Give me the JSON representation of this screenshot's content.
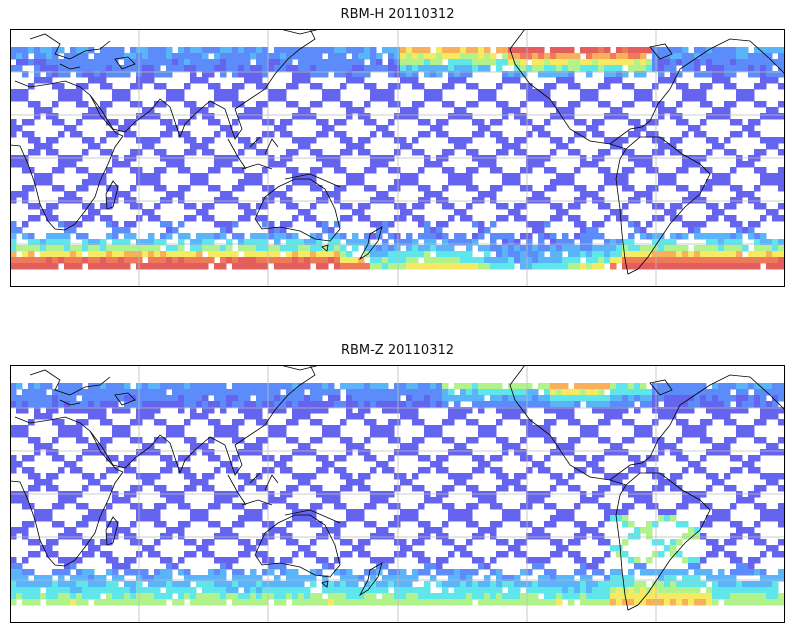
{
  "panels": [
    {
      "title": "RBM-H 20110312",
      "variable": "RBM-H"
    },
    {
      "title": "RBM-Z 20110312",
      "variable": "RBM-Z"
    }
  ],
  "colormap": [
    "#6464ee",
    "#5c8cfa",
    "#5ab4fa",
    "#5ee6ea",
    "#b2f28a",
    "#f6ea62",
    "#f8b05a",
    "#ee7a5a",
    "#e45e5e"
  ],
  "gridlines": true,
  "frame_color": "#000000",
  "coastline_color": "#000000"
}
